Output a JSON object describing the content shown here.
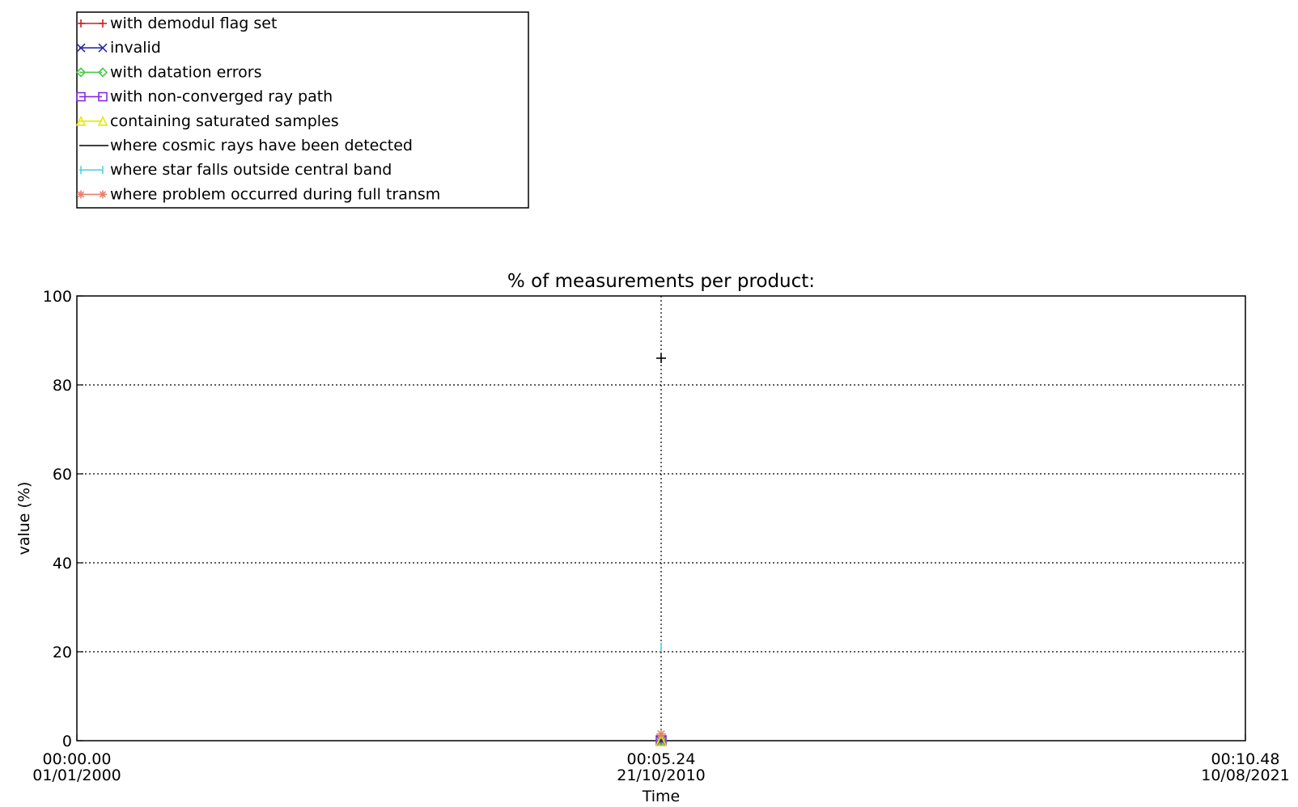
{
  "chart_data": {
    "type": "scatter",
    "title": "% of measurements per product:",
    "xlabel": "Time",
    "ylabel": "value (%)",
    "ylim": [
      0,
      100
    ],
    "yticks": [
      0,
      20,
      40,
      60,
      80,
      100
    ],
    "grid": true,
    "legend_position": "top-left, above plot",
    "x_ticks": [
      {
        "time": "00:00.00",
        "date": "01/01/2000"
      },
      {
        "time": "00:05.24",
        "date": "21/10/2010"
      },
      {
        "time": "00:10.48",
        "date": "10/08/2021"
      }
    ],
    "x": [
      "00:05.24 21/10/2010"
    ],
    "series": [
      {
        "name": "with demodul flag set",
        "color": "#cc2222",
        "marker": "plus",
        "values": [
          0
        ]
      },
      {
        "name": "invalid",
        "color": "#2a2aa8",
        "marker": "x",
        "values": [
          0
        ]
      },
      {
        "name": "with datation errors",
        "color": "#44cc44",
        "marker": "diamond",
        "values": [
          0
        ]
      },
      {
        "name": "with non-converged ray path",
        "color": "#8a2be2",
        "marker": "square",
        "values": [
          0
        ]
      },
      {
        "name": "containing saturated samples",
        "color": "#e8e800",
        "marker": "triangle",
        "values": [
          0
        ]
      },
      {
        "name": "where cosmic rays have been detected",
        "color": "#000000",
        "marker": "plus",
        "values": [
          86
        ]
      },
      {
        "name": "where star falls outside central band",
        "color": "#55d0e0",
        "marker": "bar",
        "values": [
          21
        ]
      },
      {
        "name": "where problem occurred during full transm",
        "color": "#e8806a",
        "marker": "asterisk",
        "values": [
          1.5
        ]
      }
    ]
  }
}
